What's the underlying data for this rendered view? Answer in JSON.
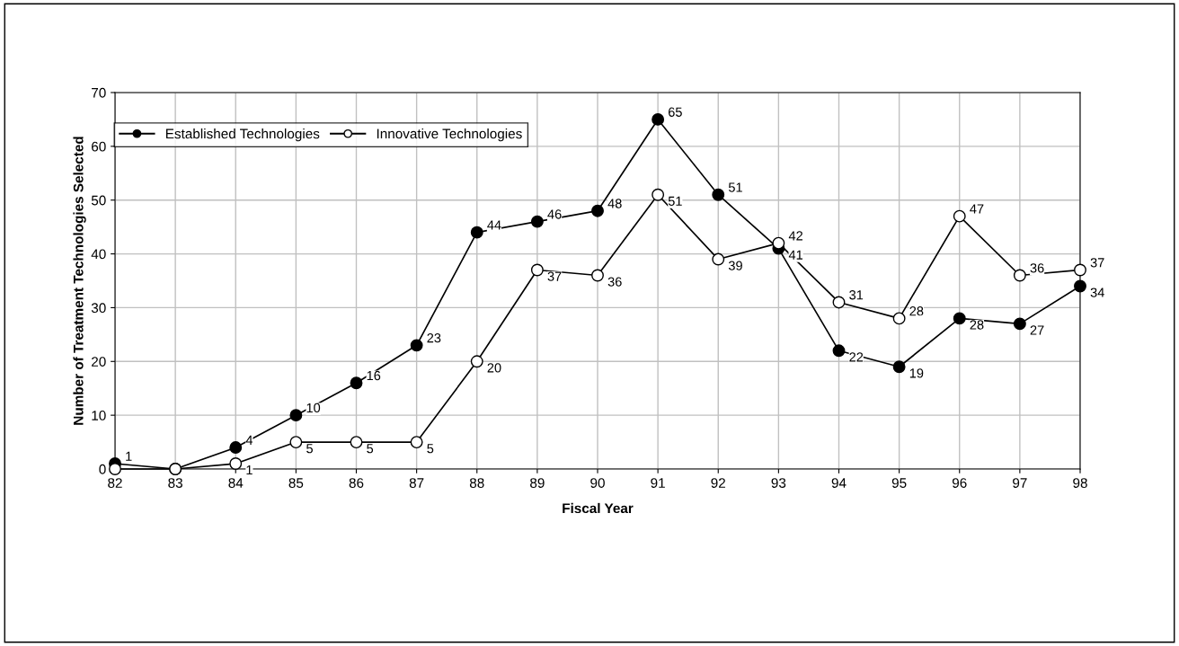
{
  "chart_data": {
    "type": "line",
    "xlabel": "Fiscal Year",
    "ylabel": "Number of Treatment Technologies Selected",
    "categories": [
      "82",
      "83",
      "84",
      "85",
      "86",
      "87",
      "88",
      "89",
      "90",
      "91",
      "92",
      "93",
      "94",
      "95",
      "96",
      "97",
      "98"
    ],
    "series": [
      {
        "name": "Established Technologies",
        "color": "#000000",
        "values": [
          1,
          0,
          4,
          10,
          16,
          23,
          44,
          46,
          48,
          65,
          51,
          41,
          22,
          19,
          28,
          27,
          34
        ],
        "value_labels": [
          "1",
          null,
          "4",
          "10",
          "16",
          "23",
          "44",
          "46",
          "48",
          "65",
          "51",
          "41",
          "22",
          "19",
          "28",
          "27",
          "34"
        ]
      },
      {
        "name": "Innovative Technologies",
        "color": "#ffffff",
        "values": [
          0,
          0,
          1,
          5,
          5,
          5,
          20,
          37,
          36,
          51,
          39,
          42,
          31,
          28,
          47,
          36,
          37
        ],
        "value_labels": [
          null,
          null,
          "1",
          "5",
          "5",
          "5",
          "20",
          "37",
          "36",
          "51",
          "39",
          "42",
          "31",
          "28",
          "47",
          "36",
          "37"
        ]
      }
    ],
    "ylim": [
      0,
      70
    ],
    "yticks": [
      0,
      10,
      20,
      30,
      40,
      50,
      60,
      70
    ],
    "grid": true,
    "legend": "top left",
    "marker": "circle",
    "line_style": "solid"
  }
}
